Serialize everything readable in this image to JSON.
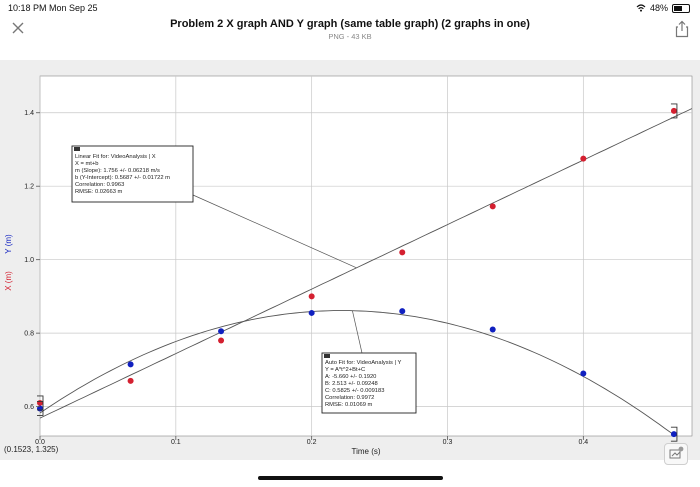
{
  "status_bar": {
    "time": "10:18 PM  Mon Sep 25",
    "battery": "48%"
  },
  "header": {
    "title": "Problem 2 X graph AND Y graph (same table graph) (2 graphs in one)",
    "subtitle": "PNG - 43 KB"
  },
  "icons": {
    "close": "close-icon",
    "share": "share-icon",
    "wifi": "wifi-icon",
    "battery": "battery-icon",
    "markup": "markup-icon"
  },
  "colors": {
    "x_series": "#d42030",
    "y_series": "#1020c0",
    "fit_line": "#555555",
    "grid": "#c8c8c8"
  },
  "linear_box": {
    "lines": [
      "Linear Fit for: VideoAnalysis | X",
      "X = mt+b",
      "m (Slope): 1.756 +/- 0.06218 m/s",
      "b (Y-Intercept): 0.5687 +/- 0.01722 m",
      "Correlation: 0.9963",
      "RMSE: 0.02663 m"
    ]
  },
  "quad_box": {
    "lines": [
      "Auto Fit for: VideoAnalysis | Y",
      "Y = A*t^2+Bt+C",
      "A: -5.660 +/- 0.1920",
      "B: 2.513 +/- 0.09248",
      "C: 0.5825 +/- 0.009183",
      "Correlation: 0.9972",
      "RMSE: 0.01069 m"
    ]
  },
  "readout": "(0.1523, 1.325)",
  "chart_data": {
    "type": "scatter",
    "xlabel": "Time (s)",
    "ylabel_x": "X (m)",
    "ylabel_y": "Y (m)",
    "xlim": [
      0.0,
      0.48
    ],
    "ylim": [
      0.52,
      1.5
    ],
    "x_ticks": [
      0.0,
      0.1,
      0.2,
      0.3,
      0.4
    ],
    "x_tick_labels": [
      "0.0",
      "0.1",
      "0.2",
      "0.3",
      "0.4"
    ],
    "y_ticks": [
      0.6,
      0.8,
      1.0,
      1.2,
      1.4
    ],
    "y_tick_labels": [
      "0.6",
      "0.8",
      "1.0",
      "1.2",
      "1.4"
    ],
    "grid": true,
    "series": [
      {
        "name": "X (m)",
        "color": "#d42030",
        "x": [
          0.0,
          0.0667,
          0.1333,
          0.2,
          0.2667,
          0.3333,
          0.4,
          0.4667
        ],
        "y": [
          0.61,
          0.67,
          0.78,
          0.9,
          1.02,
          1.145,
          1.275,
          1.405
        ]
      },
      {
        "name": "Y (m)",
        "color": "#1020c0",
        "x": [
          0.0,
          0.0667,
          0.1333,
          0.2,
          0.2667,
          0.3333,
          0.4,
          0.4667
        ],
        "y": [
          0.595,
          0.715,
          0.805,
          0.855,
          0.86,
          0.81,
          0.69,
          0.525
        ]
      }
    ],
    "fits": [
      {
        "type": "linear",
        "series": "X (m)",
        "m": 1.756,
        "b": 0.5687
      },
      {
        "type": "quadratic",
        "series": "Y (m)",
        "A": -5.66,
        "B": 2.513,
        "C": 0.5825
      }
    ]
  }
}
